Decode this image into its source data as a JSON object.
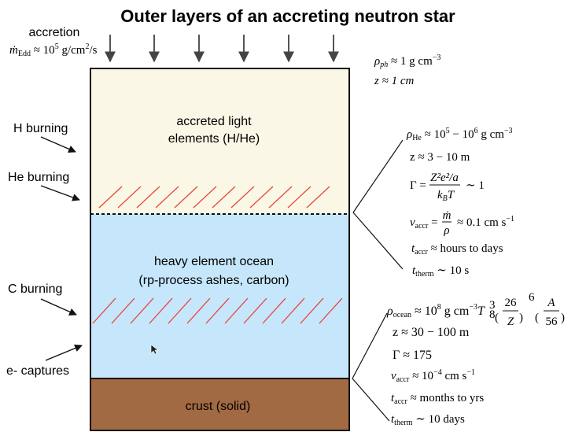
{
  "title": "Outer layers of an accreting neutron star",
  "colors": {
    "light_layer": "#fbf7e6",
    "ocean_layer": "#c6e6fb",
    "crust_layer": "#a26a43",
    "hatch": "#e8453c",
    "arrow": "#444444"
  },
  "accretion": {
    "label": "accretion",
    "rate_prefix": "ṁ",
    "rate_sub": "Edd",
    "rate_mid": " ≈ 10",
    "rate_exp": "5",
    "rate_unit": " g/cm",
    "rate_unit_exp": "2",
    "rate_unit_end": "/s"
  },
  "layers": {
    "light": {
      "line1": "accreted light",
      "line2": "elements (H/He)"
    },
    "ocean": {
      "line1": "heavy element ocean",
      "line2": "(rp-process ashes, carbon)"
    },
    "crust": {
      "label": "crust (solid)"
    }
  },
  "left_labels": {
    "h_burning": "H burning",
    "he_burning": "He burning",
    "c_burning": "C burning",
    "e_captures": "e- captures"
  },
  "photosphere": {
    "rho_sym": "ρ",
    "rho_sub": "ph",
    "rho_val": " ≈ 1 g cm",
    "rho_exp": "−3",
    "z": "z ≈ 1 cm"
  },
  "he_layer": {
    "rho_sym": "ρ",
    "rho_sub": "He",
    "rho_val": " ≈ 10",
    "rho_exp1": "5",
    "rho_mid": " − 10",
    "rho_exp2": "6",
    "rho_unit": " g cm",
    "rho_unit_exp": "−3",
    "z": "z ≈ 3 − 10 m",
    "gamma_lhs": "Γ =",
    "gamma_num": "Z²e²/a",
    "gamma_den_k": "k",
    "gamma_den_sub": "B",
    "gamma_den_T": "T",
    "gamma_rhs": "∼ 1",
    "v_sym": "v",
    "v_sub": "accr",
    "v_eq": " =",
    "v_num": "ṁ",
    "v_den": "ρ",
    "v_rhs": "≈ 0.1 cm s",
    "v_exp": "−1",
    "t_sym": "t",
    "t_sub": "accr",
    "t_val": " ≈ hours to days",
    "tt_sym": "t",
    "tt_sub": "therm",
    "tt_val": " ∼ 10 s"
  },
  "ocean_layer": {
    "rho_sym": "ρ",
    "rho_sub": "ocean",
    "rho_val": " ≈ 10",
    "rho_exp": "8",
    "rho_unit": " g cm",
    "rho_unit_exp": "−3",
    "T_sym": "T",
    "T_sub": "8",
    "T_exp": "3",
    "frac1_num": "26",
    "frac1_den": "Z",
    "frac1_exp": "6",
    "frac2_num": "A",
    "frac2_den": "56",
    "z": "z ≈ 30 − 100 m",
    "gamma": "Γ ≈ 175",
    "v_sym": "v",
    "v_sub": "accr",
    "v_val": " ≈ 10",
    "v_exp": "−4",
    "v_unit": " cm s",
    "v_unit_exp": "−1",
    "t_sym": "t",
    "t_sub": "accr",
    "t_val": " ≈ months to yrs",
    "tt_sym": "t",
    "tt_sub": "therm",
    "tt_val": " ∼ 10 days"
  }
}
